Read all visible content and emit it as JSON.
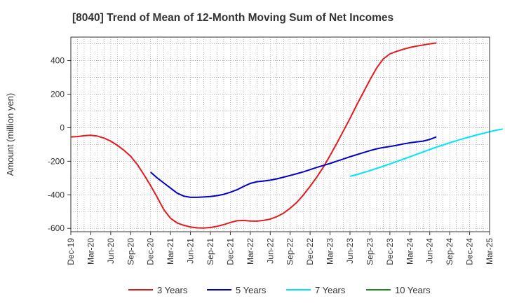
{
  "chart_data": {
    "type": "line",
    "title": "[8040]  Trend of Mean of 12-Month Moving Sum of Net Incomes",
    "ylabel": "Amount (million yen)",
    "xlabel": "",
    "x_ticks": [
      "Dec-19",
      "Mar-20",
      "Jun-20",
      "Sep-20",
      "Dec-20",
      "Mar-21",
      "Jun-21",
      "Sep-21",
      "Dec-21",
      "Mar-22",
      "Jun-22",
      "Sep-22",
      "Dec-22",
      "Mar-23",
      "Jun-23",
      "Sep-23",
      "Dec-23",
      "Mar-24",
      "Jun-24",
      "Sep-24",
      "Dec-24",
      "Mar-25"
    ],
    "y_ticks": [
      400,
      200,
      0,
      -200,
      -400,
      -600
    ],
    "ylim": [
      -620,
      540
    ],
    "grid": true,
    "legend_position": "bottom",
    "series": [
      {
        "name": "3 Years",
        "color": "#e41a1c",
        "start_index": 0,
        "values": [
          -55,
          -53,
          -48,
          -45,
          -50,
          -62,
          -80,
          -105,
          -135,
          -170,
          -220,
          -280,
          -345,
          -415,
          -490,
          -540,
          -568,
          -582,
          -592,
          -597,
          -598,
          -595,
          -588,
          -578,
          -565,
          -555,
          -553,
          -556,
          -557,
          -553,
          -545,
          -530,
          -510,
          -480,
          -445,
          -400,
          -350,
          -295,
          -235,
          -165,
          -95,
          -20,
          55,
          135,
          210,
          285,
          355,
          410,
          440,
          455,
          467,
          478,
          486,
          493,
          500,
          505
        ]
      },
      {
        "name": "5 Years",
        "color": "#0000cc",
        "start_index": 12,
        "values": [
          -265,
          -300,
          -330,
          -360,
          -390,
          -408,
          -415,
          -415,
          -413,
          -410,
          -405,
          -397,
          -385,
          -370,
          -350,
          -332,
          -322,
          -318,
          -313,
          -305,
          -295,
          -285,
          -274,
          -263,
          -250,
          -237,
          -225,
          -213,
          -200,
          -187,
          -173,
          -161,
          -149,
          -137,
          -126,
          -118,
          -112,
          -105,
          -97,
          -90,
          -85,
          -80,
          -70,
          -55
        ]
      },
      {
        "name": "7 Years",
        "color": "#00e5ff",
        "start_index": 42,
        "values": [
          -290,
          -280,
          -268,
          -256,
          -243,
          -230,
          -216,
          -202,
          -188,
          -174,
          -159,
          -145,
          -130,
          -116,
          -103,
          -90,
          -78,
          -66,
          -55,
          -44,
          -34,
          -24,
          -15,
          -8
        ]
      },
      {
        "name": "10 Years",
        "color": "#1a8a1a",
        "start_index": 0,
        "values": []
      }
    ]
  }
}
